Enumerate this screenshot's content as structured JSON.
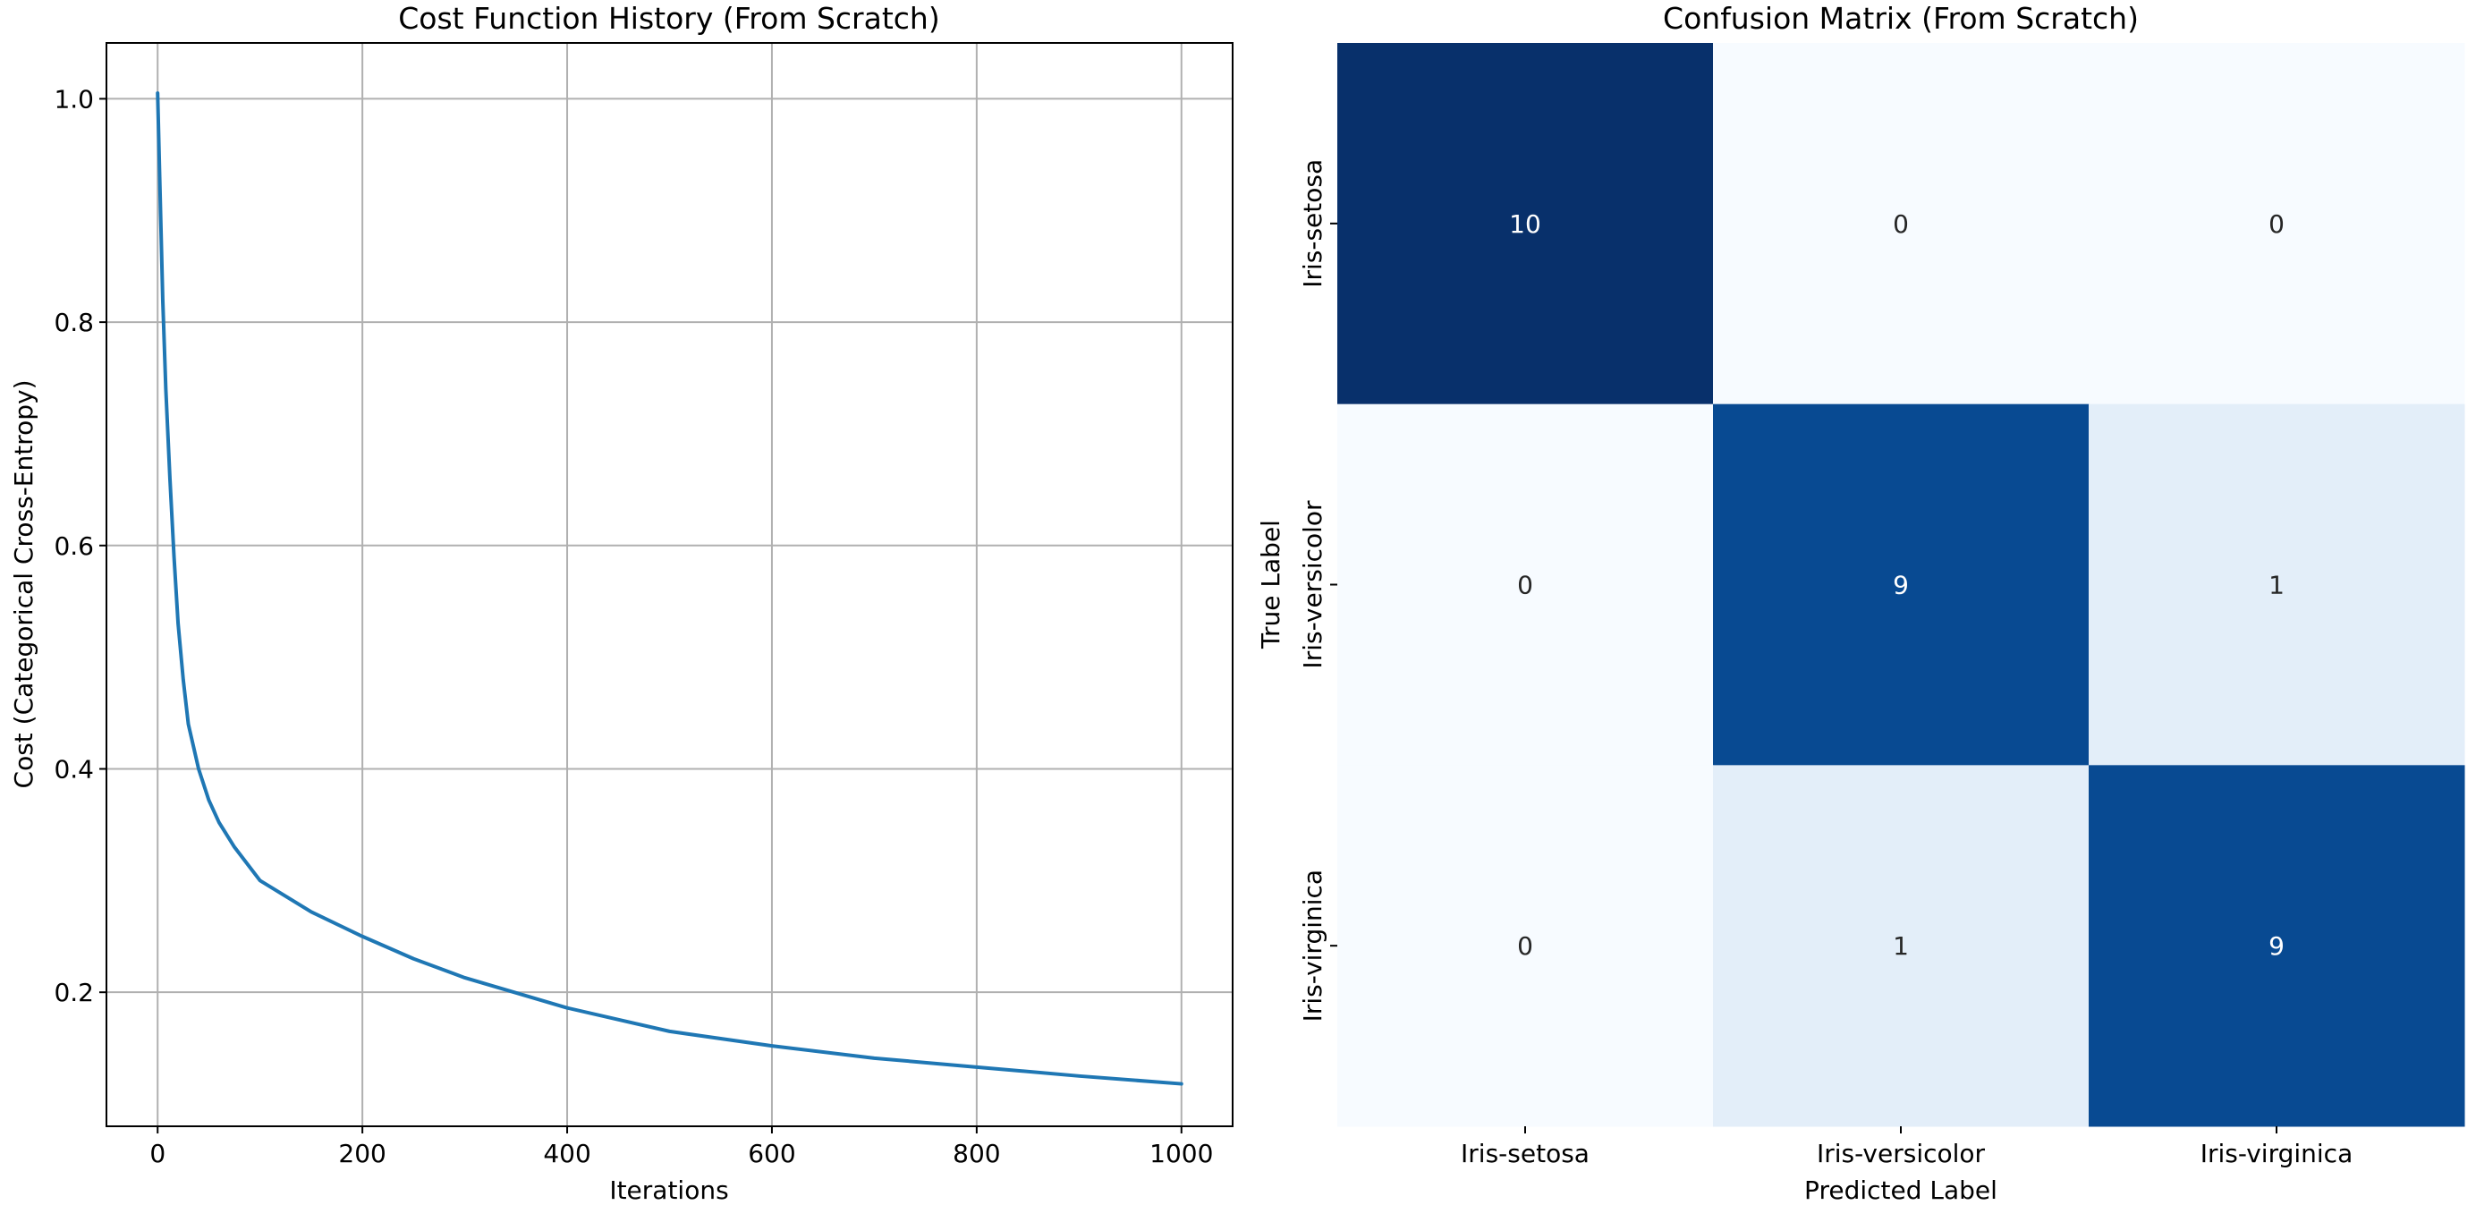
{
  "chart_data": [
    {
      "type": "line",
      "title": "Cost Function History (From Scratch)",
      "xlabel": "Iterations",
      "ylabel": "Cost (Categorical Cross-Entropy)",
      "xlim": [
        -50,
        1050
      ],
      "ylim": [
        0.08,
        1.05
      ],
      "xticks": [
        0,
        200,
        400,
        600,
        800,
        1000
      ],
      "yticks": [
        0.2,
        0.4,
        0.6,
        0.8,
        1.0
      ],
      "ytick_labels": [
        "0.2",
        "0.4",
        "0.6",
        "0.8",
        "1.0"
      ],
      "grid": true,
      "line_color": "#1f77b4",
      "series": [
        {
          "x": [
            0,
            2,
            5,
            8,
            12,
            16,
            20,
            25,
            30,
            40,
            50,
            60,
            75,
            100,
            150,
            200,
            250,
            300,
            400,
            500,
            600,
            700,
            800,
            900,
            1000
          ],
          "values": [
            1.005,
            0.93,
            0.82,
            0.74,
            0.66,
            0.59,
            0.53,
            0.48,
            0.44,
            0.4,
            0.372,
            0.352,
            0.33,
            0.3,
            0.272,
            0.25,
            0.23,
            0.213,
            0.186,
            0.165,
            0.152,
            0.141,
            0.133,
            0.125,
            0.118
          ]
        }
      ]
    },
    {
      "type": "heatmap",
      "title": "Confusion Matrix (From Scratch)",
      "xlabel": "Predicted Label",
      "ylabel": "True Label",
      "x_categories": [
        "Iris-setosa",
        "Iris-versicolor",
        "Iris-virginica"
      ],
      "y_categories": [
        "Iris-setosa",
        "Iris-versicolor",
        "Iris-virginica"
      ],
      "values": [
        [
          10,
          0,
          0
        ],
        [
          0,
          9,
          1
        ],
        [
          0,
          1,
          9
        ]
      ],
      "colormap": "Blues",
      "colorbar": false
    }
  ]
}
